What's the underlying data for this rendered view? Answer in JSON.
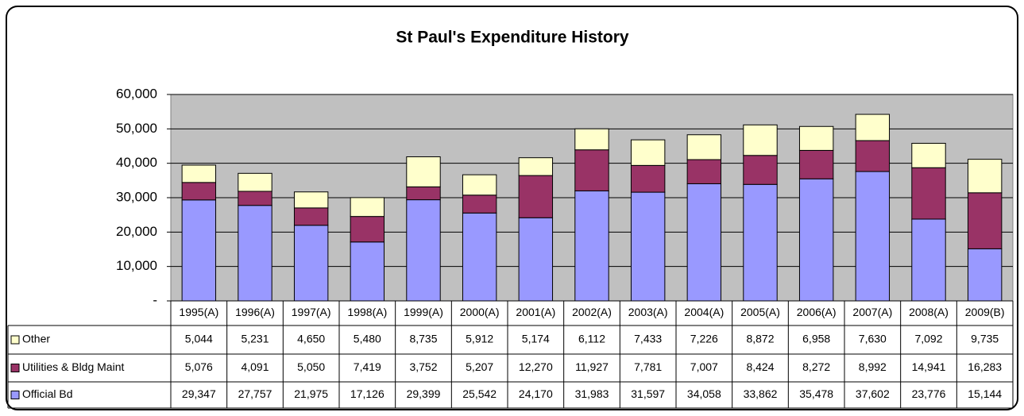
{
  "chart_data": {
    "type": "stacked_bar",
    "title": "St Paul's Expenditure History",
    "categories": [
      "1995(A)",
      "1996(A)",
      "1997(A)",
      "1998(A)",
      "1999(A)",
      "2000(A)",
      "2001(A)",
      "2002(A)",
      "2003(A)",
      "2004(A)",
      "2005(A)",
      "2006(A)",
      "2007(A)",
      "2008(A)",
      "2009(B)"
    ],
    "series": [
      {
        "name": "Official Bd",
        "color": "#9999ff",
        "values": [
          29347,
          27757,
          21975,
          17126,
          29399,
          25542,
          24170,
          31983,
          31597,
          34058,
          33862,
          35478,
          37602,
          23776,
          15144
        ],
        "value_labels": [
          "29,347",
          "27,757",
          "21,975",
          "17,126",
          "29,399",
          "25,542",
          "24,170",
          "31,983",
          "31,597",
          "34,058",
          "33,862",
          "35,478",
          "37,602",
          "23,776",
          "15,144"
        ]
      },
      {
        "name": "Utilities & Bldg Maint",
        "color": "#993366",
        "values": [
          5076,
          4091,
          5050,
          7419,
          3752,
          5207,
          12270,
          11927,
          7781,
          7007,
          8424,
          8272,
          8992,
          14941,
          16283
        ],
        "value_labels": [
          "5,076",
          "4,091",
          "5,050",
          "7,419",
          "3,752",
          "5,207",
          "12,270",
          "11,927",
          "7,781",
          "7,007",
          "8,424",
          "8,272",
          "8,992",
          "14,941",
          "16,283"
        ]
      },
      {
        "name": "Other",
        "color": "#ffffcc",
        "values": [
          5044,
          5231,
          4650,
          5480,
          8735,
          5912,
          5174,
          6112,
          7433,
          7226,
          8872,
          6958,
          7630,
          7092,
          9735
        ],
        "value_labels": [
          "5,044",
          "5,231",
          "4,650",
          "5,480",
          "8,735",
          "5,912",
          "5,174",
          "6,112",
          "7,433",
          "7,226",
          "8,872",
          "6,958",
          "7,630",
          "7,092",
          "9,735"
        ]
      }
    ],
    "ylim": [
      0,
      60000
    ],
    "yticks": [
      {
        "value": 0,
        "label": "-"
      },
      {
        "value": 10000,
        "label": "10,000"
      },
      {
        "value": 20000,
        "label": "20,000"
      },
      {
        "value": 30000,
        "label": "30,000"
      },
      {
        "value": 40000,
        "label": "40,000"
      },
      {
        "value": 50000,
        "label": "50,000"
      },
      {
        "value": 60000,
        "label": "60,000"
      }
    ],
    "grid": true,
    "plot_background": "#c0c0c0"
  }
}
